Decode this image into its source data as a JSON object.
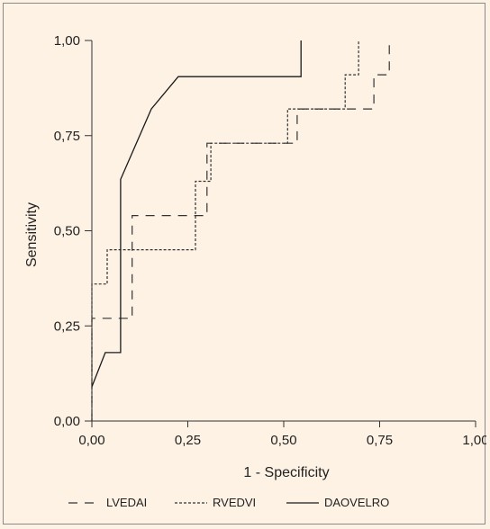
{
  "chart_data": {
    "type": "line",
    "subtype": "roc-step",
    "xlabel": "1 - Specificity",
    "ylabel": "Sensitivity",
    "xlim": [
      0,
      1
    ],
    "ylim": [
      0,
      1
    ],
    "x_ticks": [
      0,
      0.25,
      0.5,
      0.75,
      1
    ],
    "y_ticks": [
      0,
      0.25,
      0.5,
      0.75,
      1
    ],
    "x_tick_labels": [
      "0,00",
      "0,25",
      "0,50",
      "0,75",
      "1,00"
    ],
    "y_tick_labels": [
      "0,00",
      "0,25",
      "0,50",
      "0,75",
      "1,00"
    ],
    "grid": false,
    "legend_position": "bottom",
    "series": [
      {
        "name": "LVEDAI",
        "line_style": "dashed",
        "color": "#333333",
        "points": [
          [
            0.0,
            0.0
          ],
          [
            0.0,
            0.27
          ],
          [
            0.085,
            0.27
          ],
          [
            0.085,
            0.27
          ],
          [
            0.105,
            0.27
          ],
          [
            0.105,
            0.54
          ],
          [
            0.3,
            0.54
          ],
          [
            0.3,
            0.73
          ],
          [
            0.535,
            0.73
          ],
          [
            0.535,
            0.82
          ],
          [
            0.735,
            0.82
          ],
          [
            0.735,
            0.91
          ],
          [
            0.775,
            0.91
          ],
          [
            0.775,
            1.0
          ]
        ]
      },
      {
        "name": "RVEDVI",
        "line_style": "dotted",
        "color": "#333333",
        "points": [
          [
            0.0,
            0.0
          ],
          [
            0.0,
            0.36
          ],
          [
            0.04,
            0.36
          ],
          [
            0.04,
            0.45
          ],
          [
            0.27,
            0.45
          ],
          [
            0.27,
            0.63
          ],
          [
            0.31,
            0.63
          ],
          [
            0.31,
            0.73
          ],
          [
            0.51,
            0.73
          ],
          [
            0.51,
            0.82
          ],
          [
            0.66,
            0.82
          ],
          [
            0.66,
            0.91
          ],
          [
            0.695,
            0.91
          ],
          [
            0.695,
            1.0
          ]
        ]
      },
      {
        "name": "DAOVELRO",
        "line_style": "solid",
        "color": "#1a1a1a",
        "points": [
          [
            0.0,
            0.09
          ],
          [
            0.035,
            0.18
          ],
          [
            0.075,
            0.18
          ],
          [
            0.075,
            0.635
          ],
          [
            0.155,
            0.82
          ],
          [
            0.225,
            0.905
          ],
          [
            0.545,
            0.905
          ],
          [
            0.545,
            1.0
          ]
        ]
      }
    ]
  }
}
